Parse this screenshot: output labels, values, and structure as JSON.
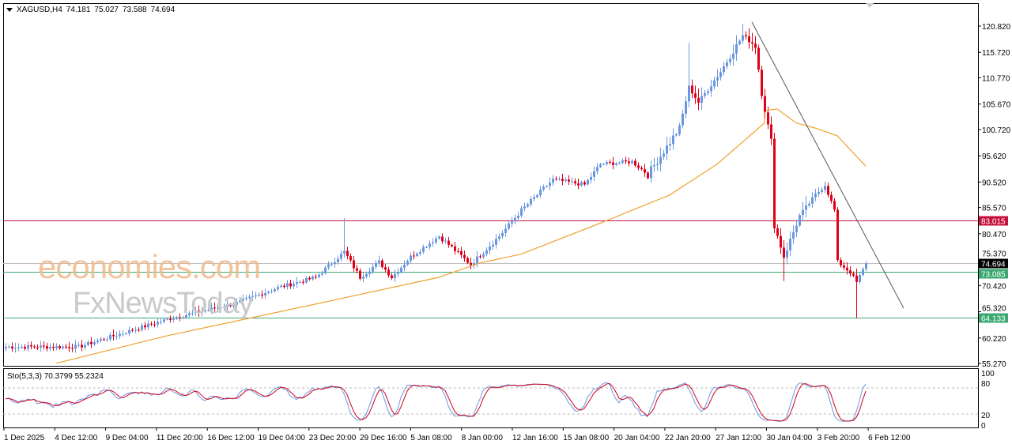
{
  "header": {
    "symbol": "XAGUSD,H4",
    "open": "74.181",
    "high": "75.027",
    "low": "73.588",
    "close": "74.694"
  },
  "watermark": {
    "brand1": "economies.com",
    "brand2": "FxNewsToday"
  },
  "stochastic": {
    "label": "Sto(5,3,3) 70.3799 55.2324",
    "levels": [
      "100",
      "80",
      "20",
      "0"
    ]
  },
  "colors": {
    "up": "#6a98e0",
    "down": "#e00018",
    "ma": "#f0a030",
    "resistance": "#c8103c",
    "support": "#3aa870",
    "current": "#000000",
    "stoK": "#6a98e0",
    "stoD": "#d0001c"
  },
  "chart_data": {
    "type": "candlestick",
    "symbol": "XAGUSD",
    "timeframe": "H4",
    "ylim": [
      55.27,
      120.82
    ],
    "y_ticks": [
      "120.820",
      "115.720",
      "110.770",
      "105.670",
      "100.720",
      "95.620",
      "90.520",
      "85.570",
      "80.470",
      "75.370",
      "70.420",
      "65.320",
      "60.220",
      "55.270"
    ],
    "x_ticks": [
      "1 Dec 2025",
      "4 Dec 12:00",
      "9 Dec 04:00",
      "11 Dec 20:00",
      "16 Dec 12:00",
      "19 Dec 04:00",
      "23 Dec 20:00",
      "29 Dec 16:00",
      "5 Jan 08:00",
      "8 Jan 00:00",
      "12 Jan 16:00",
      "15 Jan 08:00",
      "20 Jan 04:00",
      "22 Jan 20:00",
      "27 Jan 12:00",
      "30 Jan 04:00",
      "3 Feb 20:00",
      "6 Feb 12:00"
    ],
    "bars": 273,
    "close_anchors": [
      [
        0,
        58.5
      ],
      [
        23,
        58.5
      ],
      [
        36,
        61
      ],
      [
        52,
        64
      ],
      [
        73,
        67
      ],
      [
        86,
        70
      ],
      [
        98,
        72
      ],
      [
        107,
        77
      ],
      [
        112,
        72
      ],
      [
        118,
        75
      ],
      [
        122,
        72
      ],
      [
        128,
        76
      ],
      [
        137,
        80
      ],
      [
        147,
        74.5
      ],
      [
        156,
        80
      ],
      [
        163,
        85
      ],
      [
        173,
        91
      ],
      [
        183,
        90
      ],
      [
        188,
        94
      ],
      [
        198,
        94.5
      ],
      [
        203,
        92
      ],
      [
        213,
        101
      ],
      [
        216,
        109
      ],
      [
        219,
        106
      ],
      [
        226,
        112
      ],
      [
        233,
        119
      ],
      [
        237,
        117
      ],
      [
        239,
        108
      ],
      [
        242,
        98
      ],
      [
        243,
        82
      ],
      [
        246,
        76
      ],
      [
        251,
        84
      ],
      [
        256,
        88
      ],
      [
        259,
        90
      ],
      [
        262,
        85
      ],
      [
        263,
        75
      ],
      [
        267,
        73
      ],
      [
        269,
        71
      ],
      [
        272,
        74.69
      ]
    ],
    "spikes": [
      {
        "bar": 107,
        "high": 83.5
      },
      {
        "bar": 233,
        "high": 121.2
      },
      {
        "bar": 216,
        "high": 117.5
      },
      {
        "bar": 269,
        "low": 64.13
      },
      {
        "bar": 246,
        "low": 71.3
      }
    ],
    "moving_average": [
      [
        16,
        55.3
      ],
      [
        50,
        60.5
      ],
      [
        98,
        66.8
      ],
      [
        137,
        72
      ],
      [
        150,
        74.8
      ],
      [
        163,
        76.5
      ],
      [
        190,
        83
      ],
      [
        210,
        88
      ],
      [
        225,
        94
      ],
      [
        240,
        102
      ],
      [
        240,
        104
      ],
      [
        241,
        104.5
      ],
      [
        244,
        104.7
      ],
      [
        250,
        102
      ],
      [
        256,
        101
      ],
      [
        263,
        99.5
      ],
      [
        272,
        93.6
      ]
    ],
    "horizontal_lines": [
      {
        "value": 83.015,
        "label": "83.015",
        "kind": "resistance"
      },
      {
        "value": 73.085,
        "label": "73.085",
        "kind": "support"
      },
      {
        "value": 64.133,
        "label": "64.133",
        "kind": "support"
      },
      {
        "value": 74.694,
        "label": "74.694",
        "kind": "current"
      }
    ],
    "trendline": [
      [
        236,
        121.6
      ],
      [
        284,
        66
      ]
    ]
  }
}
